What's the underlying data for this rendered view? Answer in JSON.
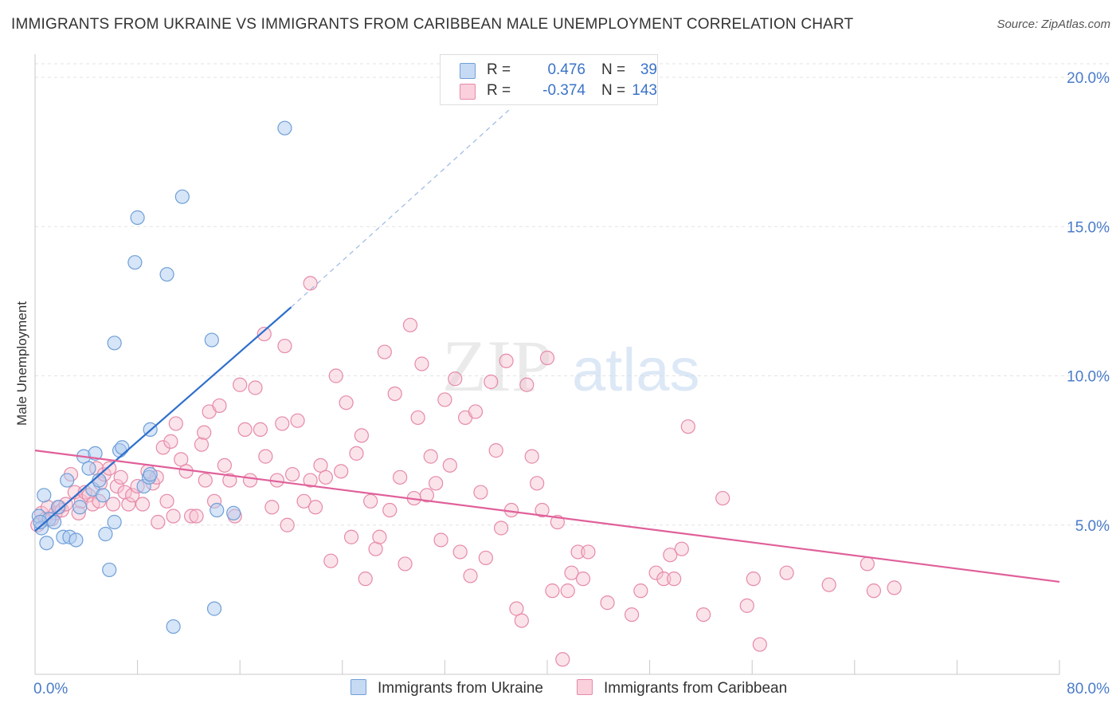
{
  "header": {
    "title": "IMMIGRANTS FROM UKRAINE VS IMMIGRANTS FROM CARIBBEAN MALE UNEMPLOYMENT CORRELATION CHART",
    "source": "Source: ZipAtlas.com"
  },
  "watermark": {
    "zip": "ZIP",
    "atlas": "atlas"
  },
  "legend": {
    "r_label": "R =",
    "n_label": "N =",
    "series": [
      {
        "name": "Immigrants from Ukraine",
        "r": "0.476",
        "n": "39",
        "fill": "#aecbf0",
        "stroke": "#6f9fd8"
      },
      {
        "name": "Immigrants from Caribbean",
        "r": "-0.374",
        "n": "143",
        "fill": "#f6c0d0",
        "stroke": "#e68aa8"
      }
    ]
  },
  "colors": {
    "blue_line": "#2f6fcc",
    "pink_line": "#e0609a",
    "axis_label": "#4a7cc9",
    "grid": "#e3e3e3"
  },
  "chart_data": {
    "type": "scatter",
    "title": "IMMIGRANTS FROM UKRAINE VS IMMIGRANTS FROM CARIBBEAN MALE UNEMPLOYMENT CORRELATION CHART",
    "xlabel": "",
    "ylabel": "Male Unemployment",
    "xlim": [
      0,
      80
    ],
    "ylim": [
      0,
      20
    ],
    "x_tick_labels": [
      "0.0%",
      "80.0%"
    ],
    "y_ticks": [
      5,
      10,
      15,
      20
    ],
    "y_tick_labels": [
      "5.0%",
      "10.0%",
      "15.0%",
      "20.0%"
    ],
    "series": [
      {
        "name": "Immigrants from Ukraine",
        "points": [
          [
            0.3,
            5.3
          ],
          [
            0.5,
            4.9
          ],
          [
            0.7,
            6.0
          ],
          [
            0.9,
            4.4
          ],
          [
            1.1,
            5.2
          ],
          [
            1.5,
            5.1
          ],
          [
            1.8,
            5.6
          ],
          [
            2.2,
            4.6
          ],
          [
            2.5,
            6.5
          ],
          [
            2.7,
            4.6
          ],
          [
            3.2,
            4.5
          ],
          [
            3.5,
            5.6
          ],
          [
            3.8,
            7.3
          ],
          [
            4.2,
            6.9
          ],
          [
            4.5,
            6.2
          ],
          [
            4.7,
            7.4
          ],
          [
            5.0,
            6.5
          ],
          [
            5.3,
            6.0
          ],
          [
            5.5,
            4.7
          ],
          [
            5.8,
            3.5
          ],
          [
            6.2,
            5.1
          ],
          [
            6.6,
            7.5
          ],
          [
            6.8,
            7.6
          ],
          [
            7.8,
            13.8
          ],
          [
            8.0,
            15.3
          ],
          [
            8.5,
            6.3
          ],
          [
            8.9,
            6.6
          ],
          [
            9.0,
            6.7
          ],
          [
            9.0,
            8.2
          ],
          [
            10.3,
            13.4
          ],
          [
            10.8,
            1.6
          ],
          [
            11.5,
            16.0
          ],
          [
            13.8,
            11.2
          ],
          [
            14.0,
            2.2
          ],
          [
            14.2,
            5.5
          ],
          [
            15.5,
            5.4
          ],
          [
            19.5,
            18.3
          ],
          [
            6.2,
            11.1
          ],
          [
            0.4,
            5.1
          ]
        ],
        "trend_solid": [
          [
            0,
            4.8
          ],
          [
            20,
            12.3
          ]
        ],
        "trend_dashed": [
          [
            20,
            12.3
          ],
          [
            37,
            18.9
          ]
        ]
      },
      {
        "name": "Immigrants from Caribbean",
        "points": [
          [
            0.2,
            5.0
          ],
          [
            0.5,
            5.4
          ],
          [
            0.8,
            5.2
          ],
          [
            1.0,
            5.6
          ],
          [
            1.3,
            5.2
          ],
          [
            1.6,
            5.4
          ],
          [
            1.9,
            5.6
          ],
          [
            2.1,
            5.5
          ],
          [
            2.4,
            5.7
          ],
          [
            2.8,
            6.7
          ],
          [
            3.1,
            6.1
          ],
          [
            3.4,
            5.4
          ],
          [
            3.6,
            5.8
          ],
          [
            3.9,
            6.1
          ],
          [
            4.2,
            6.0
          ],
          [
            4.5,
            5.7
          ],
          [
            4.8,
            6.9
          ],
          [
            5.1,
            6.4
          ],
          [
            5.4,
            6.7
          ],
          [
            5.8,
            6.9
          ],
          [
            6.1,
            5.7
          ],
          [
            6.4,
            6.3
          ],
          [
            6.7,
            6.6
          ],
          [
            7.0,
            6.1
          ],
          [
            7.3,
            5.7
          ],
          [
            7.6,
            6.0
          ],
          [
            8.0,
            6.3
          ],
          [
            8.4,
            5.7
          ],
          [
            8.8,
            6.8
          ],
          [
            9.2,
            6.4
          ],
          [
            9.6,
            5.1
          ],
          [
            10.0,
            7.6
          ],
          [
            10.3,
            5.8
          ],
          [
            10.6,
            7.8
          ],
          [
            11.0,
            8.4
          ],
          [
            11.4,
            7.2
          ],
          [
            11.8,
            6.8
          ],
          [
            12.2,
            5.3
          ],
          [
            12.6,
            5.3
          ],
          [
            13.0,
            7.7
          ],
          [
            13.2,
            8.1
          ],
          [
            13.6,
            8.8
          ],
          [
            14.0,
            5.8
          ],
          [
            14.4,
            9.0
          ],
          [
            14.8,
            7.0
          ],
          [
            15.2,
            6.5
          ],
          [
            15.6,
            5.3
          ],
          [
            16.0,
            9.7
          ],
          [
            16.4,
            8.2
          ],
          [
            16.8,
            6.5
          ],
          [
            17.2,
            9.6
          ],
          [
            17.6,
            8.2
          ],
          [
            18.0,
            7.3
          ],
          [
            18.5,
            5.6
          ],
          [
            18.9,
            6.5
          ],
          [
            19.3,
            8.4
          ],
          [
            19.7,
            5.0
          ],
          [
            20.1,
            6.7
          ],
          [
            20.5,
            8.5
          ],
          [
            21.0,
            5.8
          ],
          [
            21.5,
            6.5
          ],
          [
            21.9,
            5.6
          ],
          [
            22.3,
            7.0
          ],
          [
            22.7,
            6.6
          ],
          [
            23.1,
            3.8
          ],
          [
            23.5,
            10.0
          ],
          [
            23.9,
            6.8
          ],
          [
            24.3,
            9.1
          ],
          [
            24.7,
            4.6
          ],
          [
            25.1,
            7.4
          ],
          [
            25.5,
            8.0
          ],
          [
            25.8,
            3.2
          ],
          [
            26.2,
            5.8
          ],
          [
            26.6,
            4.2
          ],
          [
            26.9,
            4.6
          ],
          [
            27.3,
            10.8
          ],
          [
            27.7,
            5.5
          ],
          [
            28.1,
            9.4
          ],
          [
            28.5,
            6.6
          ],
          [
            28.9,
            3.7
          ],
          [
            29.3,
            11.7
          ],
          [
            29.6,
            5.9
          ],
          [
            29.9,
            8.6
          ],
          [
            30.2,
            10.4
          ],
          [
            30.6,
            6.0
          ],
          [
            30.9,
            7.3
          ],
          [
            31.3,
            6.4
          ],
          [
            31.7,
            4.5
          ],
          [
            32.0,
            9.2
          ],
          [
            32.4,
            7.0
          ],
          [
            32.8,
            9.9
          ],
          [
            33.2,
            4.1
          ],
          [
            33.6,
            8.6
          ],
          [
            34.0,
            3.3
          ],
          [
            34.4,
            8.8
          ],
          [
            34.8,
            6.1
          ],
          [
            35.2,
            3.9
          ],
          [
            35.6,
            9.8
          ],
          [
            36.0,
            7.5
          ],
          [
            36.4,
            4.9
          ],
          [
            36.8,
            10.5
          ],
          [
            37.2,
            5.5
          ],
          [
            37.6,
            2.2
          ],
          [
            38.0,
            1.8
          ],
          [
            38.4,
            9.7
          ],
          [
            38.8,
            7.3
          ],
          [
            39.2,
            6.4
          ],
          [
            39.6,
            5.5
          ],
          [
            40.0,
            10.6
          ],
          [
            40.4,
            2.8
          ],
          [
            40.8,
            5.1
          ],
          [
            41.2,
            0.5
          ],
          [
            41.6,
            2.8
          ],
          [
            41.9,
            3.4
          ],
          [
            42.4,
            4.1
          ],
          [
            42.8,
            3.2
          ],
          [
            43.2,
            4.1
          ],
          [
            44.7,
            2.4
          ],
          [
            46.6,
            2.0
          ],
          [
            47.3,
            2.8
          ],
          [
            48.5,
            3.4
          ],
          [
            49.1,
            3.2
          ],
          [
            49.6,
            4.0
          ],
          [
            49.9,
            3.2
          ],
          [
            50.5,
            4.2
          ],
          [
            51.0,
            8.3
          ],
          [
            52.2,
            2.0
          ],
          [
            53.7,
            5.9
          ],
          [
            55.6,
            2.3
          ],
          [
            56.1,
            3.2
          ],
          [
            56.6,
            1.0
          ],
          [
            58.7,
            3.4
          ],
          [
            62.0,
            3.0
          ],
          [
            65.0,
            3.7
          ],
          [
            65.5,
            2.8
          ],
          [
            67.1,
            2.9
          ],
          [
            21.5,
            13.1
          ],
          [
            17.9,
            11.4
          ],
          [
            19.5,
            11.0
          ],
          [
            9.5,
            6.6
          ],
          [
            13.3,
            6.5
          ],
          [
            10.8,
            5.3
          ],
          [
            5.0,
            5.8
          ]
        ],
        "trend_solid": [
          [
            0,
            7.5
          ],
          [
            80,
            3.1
          ]
        ]
      }
    ]
  }
}
